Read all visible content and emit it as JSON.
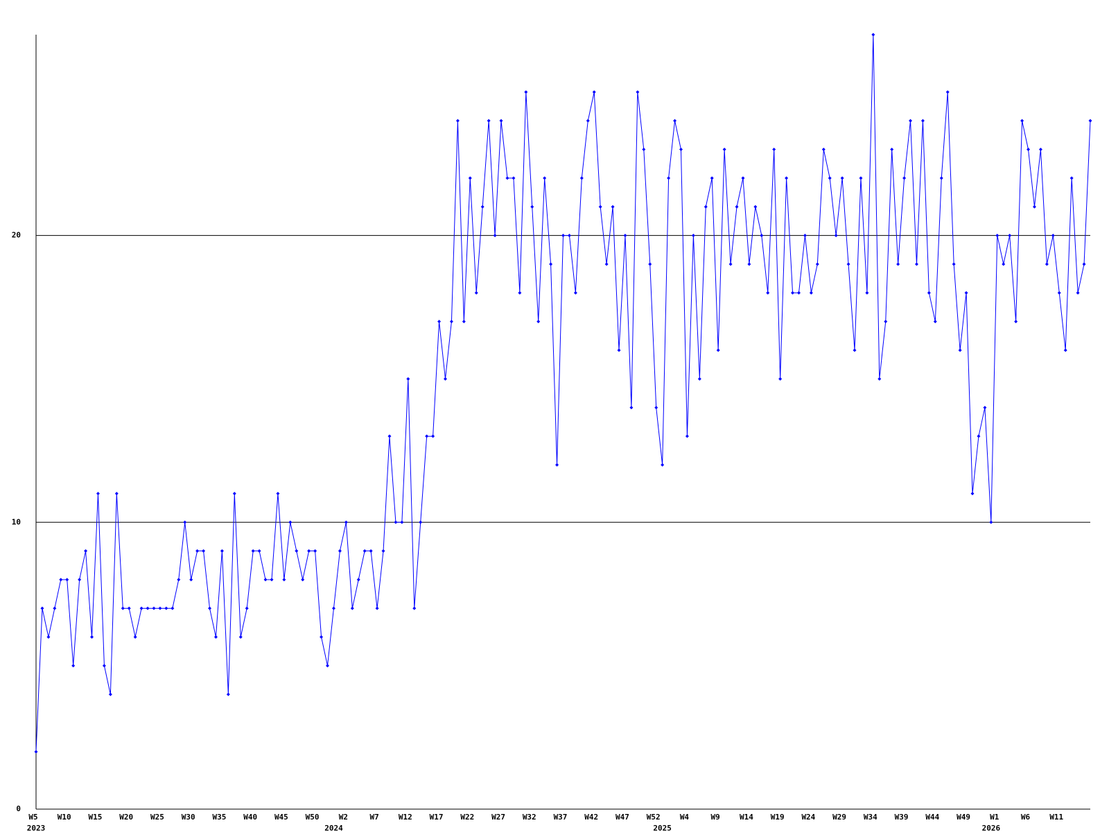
{
  "chart_data": {
    "type": "line",
    "categories": [
      "W5",
      null,
      null,
      null,
      null,
      "W10",
      null,
      null,
      null,
      null,
      "W15",
      null,
      null,
      null,
      null,
      "W20",
      null,
      null,
      null,
      null,
      "W25",
      null,
      null,
      null,
      null,
      "W30",
      null,
      null,
      null,
      null,
      "W35",
      null,
      null,
      null,
      null,
      "W40",
      null,
      null,
      null,
      null,
      "W45",
      null,
      null,
      null,
      null,
      "W50",
      null,
      null,
      null,
      null,
      "W2",
      null,
      null,
      null,
      null,
      "W7",
      null,
      null,
      null,
      null,
      "W12",
      null,
      null,
      null,
      null,
      "W17",
      null,
      null,
      null,
      null,
      "W22",
      null,
      null,
      null,
      null,
      "W27",
      null,
      null,
      null,
      null,
      "W32",
      null,
      null,
      null,
      null,
      "W37",
      null,
      null,
      null,
      null,
      "W42",
      null,
      null,
      null,
      null,
      "W47",
      null,
      null,
      null,
      null,
      "W52",
      null,
      null,
      null,
      null,
      "W4",
      null,
      null,
      null,
      null,
      "W9",
      null,
      null,
      null,
      null,
      "W14",
      null,
      null,
      null,
      null,
      "W19",
      null,
      null,
      null,
      null,
      "W24",
      null,
      null,
      null,
      null,
      "W29",
      null,
      null,
      null,
      null,
      "W34",
      null,
      null,
      null,
      null,
      "W39",
      null,
      null,
      null,
      null,
      "W44",
      null,
      null,
      null,
      null,
      "W49",
      null,
      null,
      null,
      null,
      "W1",
      null,
      null,
      null,
      null,
      "W6",
      null,
      null,
      null,
      null,
      "W11",
      null,
      null,
      null,
      null,
      null
    ],
    "year_labels": [
      "2023",
      null,
      null,
      null,
      null,
      null,
      null,
      null,
      null,
      null,
      null,
      null,
      null,
      null,
      null,
      null,
      null,
      null,
      null,
      null,
      null,
      null,
      null,
      null,
      null,
      null,
      null,
      null,
      null,
      null,
      null,
      null,
      null,
      null,
      null,
      null,
      null,
      null,
      null,
      null,
      null,
      null,
      null,
      null,
      null,
      null,
      null,
      null,
      "2024",
      null,
      null,
      null,
      null,
      null,
      null,
      null,
      null,
      null,
      null,
      null,
      null,
      null,
      null,
      null,
      null,
      null,
      null,
      null,
      null,
      null,
      null,
      null,
      null,
      null,
      null,
      null,
      null,
      null,
      null,
      null,
      null,
      null,
      null,
      null,
      null,
      null,
      null,
      null,
      null,
      null,
      null,
      null,
      null,
      null,
      null,
      null,
      null,
      null,
      null,
      null,
      null,
      "2025",
      null,
      null,
      null,
      null,
      null,
      null,
      null,
      null,
      null,
      null,
      null,
      null,
      null,
      null,
      null,
      null,
      null,
      null,
      null,
      null,
      null,
      null,
      null,
      null,
      null,
      null,
      null,
      null,
      null,
      null,
      null,
      null,
      null,
      null,
      null,
      null,
      null,
      null,
      null,
      null,
      null,
      null,
      null,
      null,
      null,
      null,
      null,
      null,
      null,
      null,
      null,
      null,
      "2026",
      null,
      null,
      null,
      null,
      null,
      null,
      null,
      null,
      null,
      null,
      null,
      null,
      null,
      null,
      null,
      null
    ],
    "values": [
      2,
      7,
      6,
      7,
      8,
      8,
      5,
      8,
      9,
      6,
      11,
      5,
      4,
      11,
      7,
      7,
      6,
      7,
      7,
      7,
      7,
      7,
      7,
      8,
      10,
      8,
      9,
      9,
      7,
      6,
      9,
      4,
      11,
      6,
      7,
      9,
      9,
      8,
      8,
      11,
      8,
      10,
      9,
      8,
      9,
      9,
      6,
      5,
      7,
      9,
      10,
      7,
      8,
      9,
      9,
      7,
      9,
      13,
      10,
      10,
      15,
      7,
      10,
      13,
      13,
      17,
      15,
      17,
      24,
      17,
      22,
      18,
      21,
      24,
      20,
      24,
      22,
      22,
      18,
      25,
      21,
      17,
      22,
      19,
      12,
      20,
      20,
      18,
      22,
      24,
      25,
      21,
      19,
      21,
      16,
      20,
      14,
      25,
      23,
      19,
      14,
      12,
      22,
      24,
      23,
      13,
      20,
      15,
      21,
      22,
      16,
      23,
      19,
      21,
      22,
      19,
      21,
      20,
      18,
      23,
      15,
      22,
      18,
      18,
      20,
      18,
      19,
      23,
      22,
      20,
      22,
      19,
      16,
      22,
      18,
      27,
      15,
      17,
      23,
      19,
      22,
      24,
      19,
      24,
      18,
      17,
      22,
      25,
      19,
      16,
      18,
      11,
      13,
      14,
      10,
      20,
      19,
      20,
      17,
      24,
      23,
      21,
      23,
      19,
      20,
      18,
      16,
      22,
      18,
      19,
      24
    ],
    "color": "#0000ff",
    "ylim": [
      0,
      27
    ],
    "yticks": [
      0,
      10,
      20
    ],
    "grid": true
  }
}
